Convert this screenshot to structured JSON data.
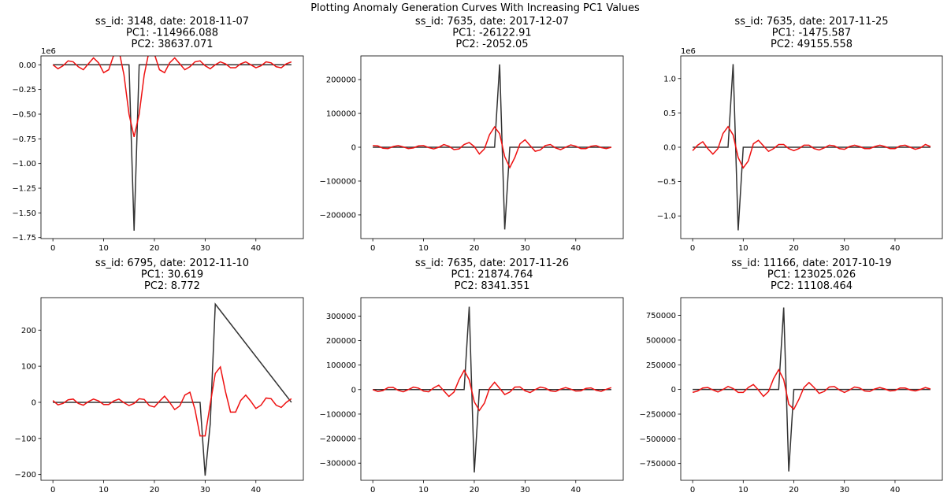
{
  "figure": {
    "suptitle": "Plotting Anomaly Generation Curves With Increasing PC1 Values",
    "colors": {
      "spike_series": "#333333",
      "curve_series": "#ee1111",
      "axes": "#000000"
    }
  },
  "chart_data": [
    {
      "type": "line",
      "title_lines": [
        "ss_id: 3148, date: 2018-11-07",
        "PC1: -114966.088",
        "PC2: 38637.071"
      ],
      "xlim": [
        -2.35,
        49.35
      ],
      "xticks": [
        0,
        10,
        20,
        30,
        40
      ],
      "xtick_labels": [
        "0",
        "10",
        "20",
        "30",
        "40"
      ],
      "ylim": [
        -1.76,
        0.09
      ],
      "yticks": [
        0,
        -0.25,
        -0.5,
        -0.75,
        -1.0,
        -1.25,
        -1.5,
        -1.75
      ],
      "ytick_labels": [
        "0.00",
        "−0.25",
        "−0.50",
        "−0.75",
        "−1.00",
        "−1.25",
        "−1.50",
        "−1.75"
      ],
      "offset_label": "1e6",
      "spike": {
        "x": [
          0,
          15,
          16,
          17,
          47
        ],
        "y": [
          0,
          0,
          -1.68,
          0,
          0
        ]
      },
      "curve": {
        "x": [
          0,
          1,
          2,
          3,
          4,
          5,
          6,
          7,
          8,
          9,
          10,
          11,
          12,
          13,
          14,
          15,
          16,
          17,
          18,
          19,
          20,
          21,
          22,
          23,
          24,
          25,
          26,
          27,
          28,
          29,
          30,
          31,
          32,
          33,
          34,
          35,
          36,
          37,
          38,
          39,
          40,
          41,
          42,
          43,
          44,
          45,
          46,
          47
        ],
        "y": [
          0,
          -0.04,
          -0.01,
          0.04,
          0.03,
          -0.02,
          -0.05,
          0.01,
          0.07,
          0.02,
          -0.08,
          -0.05,
          0.1,
          0.15,
          -0.1,
          -0.5,
          -0.73,
          -0.5,
          -0.1,
          0.15,
          0.11,
          -0.05,
          -0.08,
          0.02,
          0.07,
          0.01,
          -0.05,
          -0.02,
          0.03,
          0.04,
          -0.01,
          -0.04,
          0,
          0.03,
          0.01,
          -0.03,
          -0.03,
          0.01,
          0.03,
          0,
          -0.03,
          -0.01,
          0.03,
          0.02,
          -0.02,
          -0.03,
          0.01,
          0.03
        ]
      }
    },
    {
      "type": "line",
      "title_lines": [
        "ss_id: 7635, date: 2017-12-07",
        "PC1: -26122.91",
        "PC2: -2052.05"
      ],
      "xlim": [
        -2.35,
        49.35
      ],
      "xticks": [
        0,
        10,
        20,
        30,
        40
      ],
      "xtick_labels": [
        "0",
        "10",
        "20",
        "30",
        "40"
      ],
      "ylim": [
        -270000,
        270000
      ],
      "yticks": [
        200000,
        100000,
        0,
        -100000,
        -200000
      ],
      "ytick_labels": [
        "200000",
        "100000",
        "0",
        "−100000",
        "−200000"
      ],
      "offset_label": "",
      "spike": {
        "x": [
          0,
          24,
          25,
          26,
          27,
          47
        ],
        "y": [
          0,
          0,
          245000,
          -243000,
          0,
          0
        ]
      },
      "curve": {
        "x": [
          0,
          1,
          2,
          3,
          4,
          5,
          6,
          7,
          8,
          9,
          10,
          11,
          12,
          13,
          14,
          15,
          16,
          17,
          18,
          19,
          20,
          21,
          22,
          23,
          24,
          25,
          26,
          27,
          28,
          29,
          30,
          31,
          32,
          33,
          34,
          35,
          36,
          37,
          38,
          39,
          40,
          41,
          42,
          43,
          44,
          45,
          46,
          47
        ],
        "y": [
          5000,
          4000,
          -3000,
          -4000,
          2000,
          5000,
          1000,
          -4000,
          -2000,
          4000,
          5000,
          -1000,
          -5000,
          0,
          8000,
          3000,
          -7000,
          -5000,
          8000,
          14000,
          2000,
          -20000,
          -5000,
          37000,
          60000,
          40000,
          -28000,
          -60000,
          -30000,
          10000,
          22000,
          5000,
          -12000,
          -8000,
          5000,
          8000,
          -2000,
          -7000,
          0,
          7000,
          3000,
          -4000,
          -4000,
          3000,
          5000,
          -1000,
          -4000,
          0
        ]
      }
    },
    {
      "type": "line",
      "title_lines": [
        "ss_id: 7635, date: 2017-11-25",
        "PC1: -1475.587",
        "PC2: 49155.558"
      ],
      "xlim": [
        -2.35,
        49.35
      ],
      "xticks": [
        0,
        10,
        20,
        30,
        40
      ],
      "xtick_labels": [
        "0",
        "10",
        "20",
        "30",
        "40"
      ],
      "ylim": [
        -1.33,
        1.33
      ],
      "yticks": [
        1.0,
        0.5,
        0,
        -0.5,
        -1.0
      ],
      "ytick_labels": [
        "1.0",
        "0.5",
        "0.0",
        "−0.5",
        "−1.0"
      ],
      "offset_label": "1e6",
      "spike": {
        "x": [
          0,
          7,
          8,
          9,
          10,
          47
        ],
        "y": [
          0,
          0,
          1.21,
          -1.21,
          0,
          0
        ]
      },
      "curve": {
        "x": [
          0,
          1,
          2,
          3,
          4,
          5,
          6,
          7,
          8,
          9,
          10,
          11,
          12,
          13,
          14,
          15,
          16,
          17,
          18,
          19,
          20,
          21,
          22,
          23,
          24,
          25,
          26,
          27,
          28,
          29,
          30,
          31,
          32,
          33,
          34,
          35,
          36,
          37,
          38,
          39,
          40,
          41,
          42,
          43,
          44,
          45,
          46,
          47
        ],
        "y": [
          -0.05,
          0.03,
          0.08,
          -0.02,
          -0.1,
          -0.02,
          0.2,
          0.3,
          0.18,
          -0.15,
          -0.3,
          -0.2,
          0.05,
          0.1,
          0.02,
          -0.06,
          -0.02,
          0.04,
          0.04,
          -0.02,
          -0.05,
          -0.02,
          0.03,
          0.03,
          -0.02,
          -0.04,
          -0.01,
          0.03,
          0.02,
          -0.02,
          -0.03,
          0.01,
          0.03,
          0.01,
          -0.02,
          -0.02,
          0.01,
          0.03,
          0.01,
          -0.02,
          -0.02,
          0.02,
          0.03,
          0,
          -0.03,
          -0.01,
          0.04,
          0.01
        ]
      }
    },
    {
      "type": "line",
      "title_lines": [
        "ss_id: 6795, date: 2012-11-10",
        "PC1: 30.619",
        "PC2: 8.772"
      ],
      "xlim": [
        -2.35,
        49.35
      ],
      "xticks": [
        0,
        10,
        20,
        30,
        40
      ],
      "xtick_labels": [
        "0",
        "10",
        "20",
        "30",
        "40"
      ],
      "ylim": [
        -216,
        290
      ],
      "yticks": [
        200,
        100,
        0,
        -100,
        -200
      ],
      "ytick_labels": [
        "200",
        "100",
        "0",
        "−100",
        "−200"
      ],
      "offset_label": "",
      "spike": {
        "x": [
          0,
          29,
          30,
          31,
          32,
          47
        ],
        "y": [
          0,
          0,
          -203,
          -60,
          272,
          0
        ]
      },
      "curve": {
        "x": [
          0,
          1,
          2,
          3,
          4,
          5,
          6,
          7,
          8,
          9,
          10,
          11,
          12,
          13,
          14,
          15,
          16,
          17,
          18,
          19,
          20,
          21,
          22,
          23,
          24,
          25,
          26,
          27,
          28,
          29,
          30,
          31,
          32,
          33,
          34,
          35,
          36,
          37,
          38,
          39,
          40,
          41,
          42,
          43,
          44,
          45,
          46,
          47
        ],
        "y": [
          5,
          -7,
          -3,
          7,
          9,
          -3,
          -8,
          2,
          9,
          4,
          -6,
          -6,
          4,
          9,
          -1,
          -9,
          -3,
          10,
          8,
          -9,
          -13,
          3,
          17,
          0,
          -20,
          -10,
          20,
          28,
          -20,
          -93,
          -93,
          -5,
          80,
          98,
          30,
          -27,
          -27,
          5,
          20,
          3,
          -17,
          -8,
          12,
          10,
          -8,
          -14,
          0,
          10
        ]
      }
    },
    {
      "type": "line",
      "title_lines": [
        "ss_id: 7635, date: 2017-11-26",
        "PC1: 21874.764",
        "PC2: 8341.351"
      ],
      "xlim": [
        -2.35,
        49.35
      ],
      "xticks": [
        0,
        10,
        20,
        30,
        40
      ],
      "xtick_labels": [
        "0",
        "10",
        "20",
        "30",
        "40"
      ],
      "ylim": [
        -370000,
        375000
      ],
      "yticks": [
        300000,
        200000,
        100000,
        0,
        -100000,
        -200000,
        -300000
      ],
      "ytick_labels": [
        "300000",
        "200000",
        "100000",
        "0",
        "−100000",
        "−200000",
        "−300000"
      ],
      "offset_label": "",
      "spike": {
        "x": [
          0,
          18,
          19,
          20,
          21,
          47
        ],
        "y": [
          0,
          0,
          338000,
          -338000,
          0,
          0
        ]
      },
      "curve": {
        "x": [
          0,
          1,
          2,
          3,
          4,
          5,
          6,
          7,
          8,
          9,
          10,
          11,
          12,
          13,
          14,
          15,
          16,
          17,
          18,
          19,
          20,
          21,
          22,
          23,
          24,
          25,
          26,
          27,
          28,
          29,
          30,
          31,
          32,
          33,
          34,
          35,
          36,
          37,
          38,
          39,
          40,
          41,
          42,
          43,
          44,
          45,
          46,
          47
        ],
        "y": [
          0,
          -8000,
          -4000,
          8000,
          9000,
          -3000,
          -9000,
          0,
          10000,
          6000,
          -6000,
          -9000,
          7000,
          18000,
          -5000,
          -28000,
          -10000,
          40000,
          78000,
          40000,
          -50000,
          -85000,
          -55000,
          5000,
          30000,
          5000,
          -20000,
          -10000,
          10000,
          11000,
          -5000,
          -12000,
          0,
          10000,
          6000,
          -5000,
          -8000,
          2000,
          8000,
          2000,
          -6000,
          -5000,
          5000,
          7000,
          -3000,
          -7000,
          1000,
          8000
        ]
      }
    },
    {
      "type": "line",
      "title_lines": [
        "ss_id: 11166, date: 2017-10-19",
        "PC1: 123025.026",
        "PC2: 11108.464"
      ],
      "xlim": [
        -2.35,
        49.35
      ],
      "xticks": [
        0,
        10,
        20,
        30,
        40
      ],
      "xtick_labels": [
        "0",
        "10",
        "20",
        "30",
        "40"
      ],
      "ylim": [
        -920000,
        930000
      ],
      "yticks": [
        750000,
        500000,
        250000,
        0,
        -250000,
        -500000,
        -750000
      ],
      "ytick_labels": [
        "750000",
        "500000",
        "250000",
        "0",
        "−250000",
        "−500000",
        "−750000"
      ],
      "offset_label": "",
      "spike": {
        "x": [
          0,
          17,
          18,
          19,
          20,
          47
        ],
        "y": [
          0,
          0,
          830000,
          -830000,
          0,
          0
        ]
      },
      "curve": {
        "x": [
          0,
          1,
          2,
          3,
          4,
          5,
          6,
          7,
          8,
          9,
          10,
          11,
          12,
          13,
          14,
          15,
          16,
          17,
          18,
          19,
          20,
          21,
          22,
          23,
          24,
          25,
          26,
          27,
          28,
          29,
          30,
          31,
          32,
          33,
          34,
          35,
          36,
          37,
          38,
          39,
          40,
          41,
          42,
          43,
          44,
          45,
          46,
          47
        ],
        "y": [
          -30000,
          -15000,
          15000,
          20000,
          -5000,
          -25000,
          0,
          30000,
          10000,
          -30000,
          -30000,
          20000,
          50000,
          -5000,
          -70000,
          -20000,
          110000,
          200000,
          100000,
          -150000,
          -200000,
          -100000,
          20000,
          70000,
          20000,
          -40000,
          -20000,
          25000,
          30000,
          -5000,
          -30000,
          -5000,
          25000,
          15000,
          -15000,
          -20000,
          5000,
          20000,
          5000,
          -15000,
          -10000,
          15000,
          15000,
          -5000,
          -15000,
          0,
          20000,
          5000
        ]
      }
    }
  ]
}
